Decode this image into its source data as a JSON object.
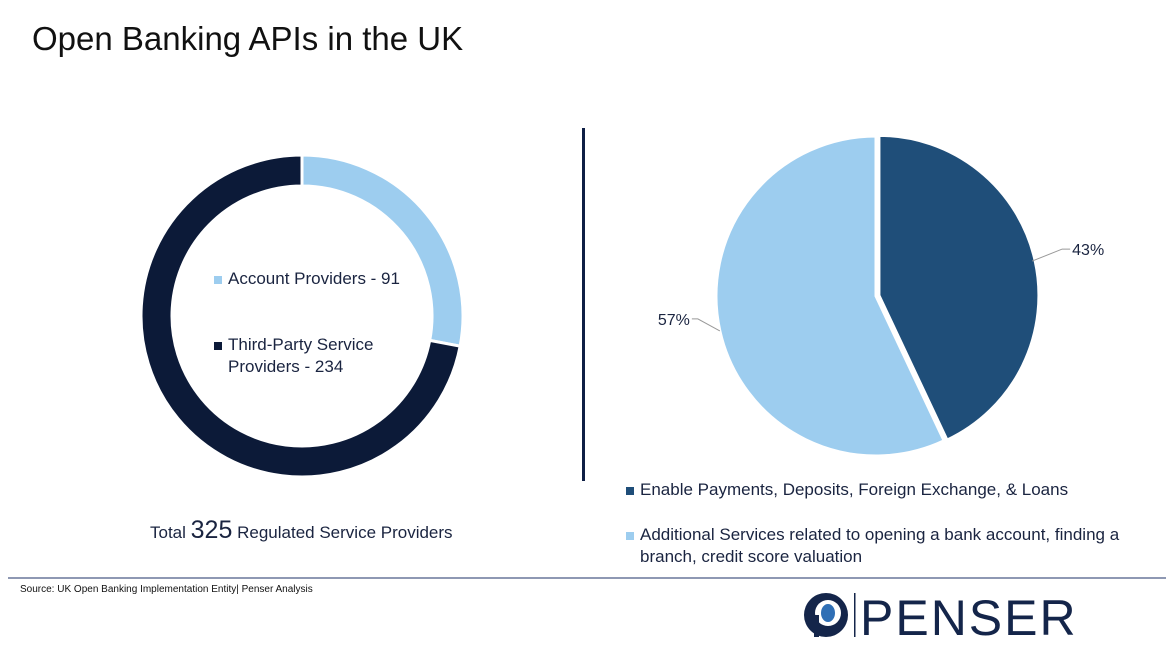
{
  "title": "Open Banking APIs in the UK",
  "chart_data": [
    {
      "type": "pie",
      "variant": "donut",
      "categories": [
        "Account Providers",
        "Third-Party Service Providers"
      ],
      "values": [
        91,
        234
      ],
      "colors": [
        "#9dcdef",
        "#0c1a38"
      ],
      "legend": [
        {
          "label": "Account Providers - 91"
        },
        {
          "label": "Third-Party Service Providers - 234"
        }
      ],
      "legend_lines": [
        [
          "Account Providers - 91"
        ],
        [
          "Third-Party Service",
          "Providers - 234"
        ]
      ],
      "legend_placement": "center",
      "caption_pre": "Total",
      "caption_number": "325",
      "caption_post": "Regulated Service Providers"
    },
    {
      "type": "pie",
      "categories": [
        "Enable Payments, Deposits, Foreign Exchange, & Loans",
        "Additional Services related to opening a bank account, finding a branch, credit score valuation"
      ],
      "values": [
        43,
        57
      ],
      "data_labels": [
        "43%",
        "57%"
      ],
      "colors": [
        "#1f4e79",
        "#9dcdef"
      ],
      "legend_lines": [
        [
          "Enable Payments, Deposits, Foreign Exchange, & Loans"
        ],
        [
          "Additional Services related to opening a bank account, finding a",
          "branch, credit score valuation"
        ]
      ],
      "legend_placement": "bottom"
    }
  ],
  "footer": {
    "source": "Source: UK Open Banking Implementation Entity| Penser Analysis",
    "logo_text": "PENSER"
  }
}
